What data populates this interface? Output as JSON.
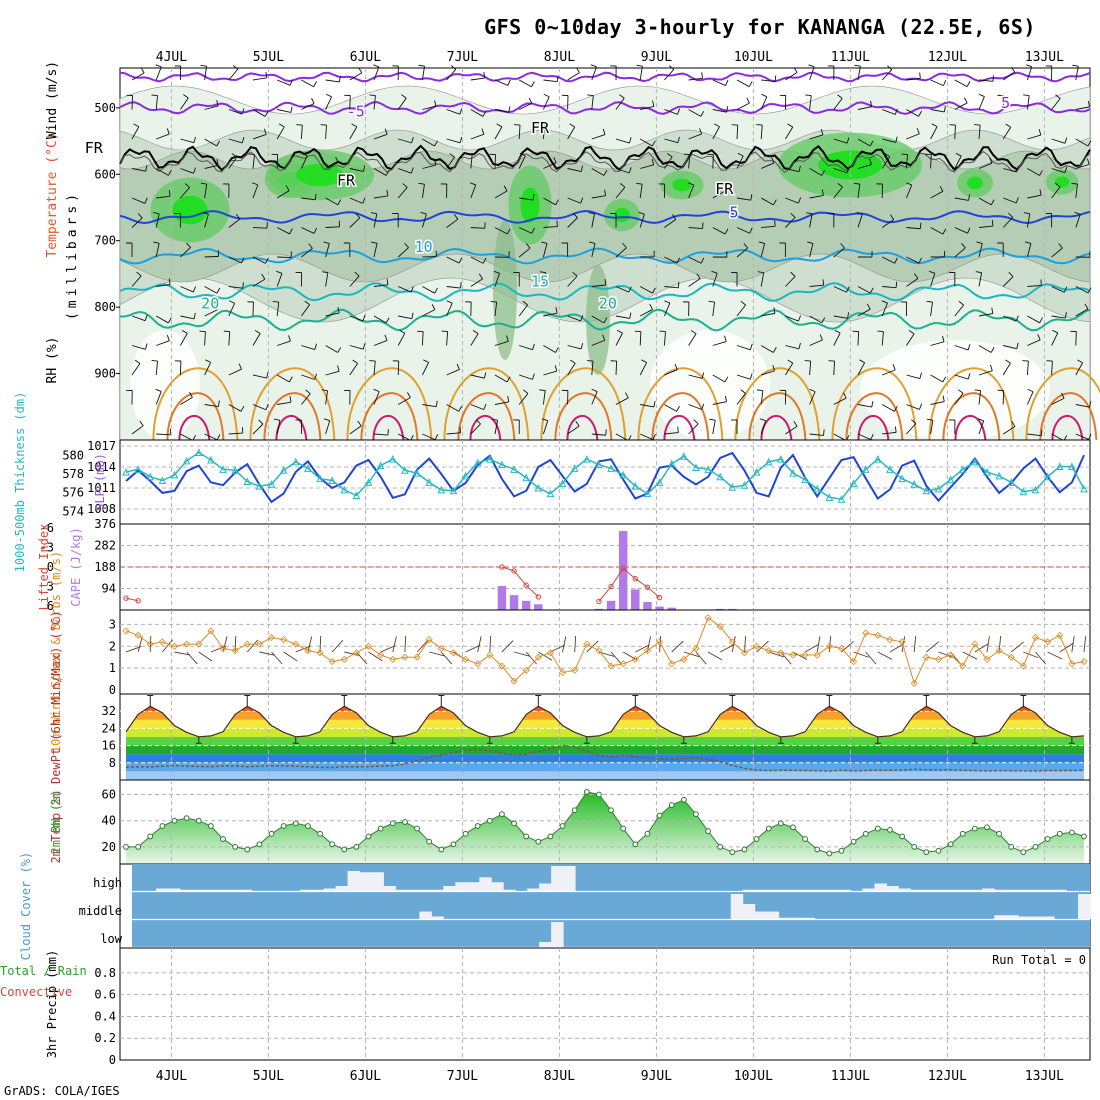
{
  "title": "GFS 0~10day 3-hourly for KANANGA (22.5E, 6S)",
  "credit": "GrADS: COLA/IGES",
  "dates": [
    "4JUL",
    "5JUL",
    "6JUL",
    "7JUL",
    "8JUL",
    "9JUL",
    "10JUL",
    "11JUL",
    "12JUL",
    "13JUL"
  ],
  "colors": {
    "grid": "#b4b4b4",
    "slp": "#1f45d6",
    "thickness": "#27b8c4",
    "cape": "#b07ae8",
    "lifted": "#d9443c",
    "wind10": "#e08a1f",
    "dewpt": "#7a5a3c",
    "rh": "#2aa02a",
    "cloud_bg": "#6aa9d6",
    "cloud_fill": "#f0f0f7"
  },
  "chart_data": [
    {
      "panel": "profile",
      "type": "contour",
      "ylabel_parts": [
        "RH (%)",
        "Temperature (°C)",
        "Wind (m/s)"
      ],
      "ylabel_unit": "(millibars)",
      "yticks": [
        500,
        600,
        700,
        800,
        900
      ],
      "ylim": [
        1000,
        440
      ],
      "contour_labels": [
        {
          "text": "-5",
          "day": 2.9,
          "p": 513,
          "color": "#8a2be2"
        },
        {
          "text": "5",
          "day": 9.6,
          "p": 500,
          "color": "#8a2be2"
        },
        {
          "text": "5",
          "day": 6.8,
          "p": 665,
          "color": "#1f45d6"
        },
        {
          "text": "10",
          "day": 3.6,
          "p": 717,
          "color": "#1aa0e0"
        },
        {
          "text": "15",
          "day": 4.8,
          "p": 769,
          "color": "#1ab7c0"
        },
        {
          "text": "20",
          "day": 1.4,
          "p": 802,
          "color": "#1ab090"
        },
        {
          "text": "20",
          "day": 5.5,
          "p": 802,
          "color": "#1ab090"
        },
        {
          "text": "FR",
          "day": 0.2,
          "p": 568,
          "color": "#000000"
        },
        {
          "text": "FR",
          "day": 2.8,
          "p": 617,
          "color": "#000000"
        },
        {
          "text": "FR",
          "day": 4.8,
          "p": 538,
          "color": "#000000"
        },
        {
          "text": "FR",
          "day": 6.7,
          "p": 630,
          "color": "#000000"
        }
      ]
    },
    {
      "panel": "slp_thickness",
      "type": "line",
      "ylabel_left": "1000-500mb Thickness (dm)",
      "ylabel_right": "SLP (mb)",
      "left_ticks": [
        574,
        576,
        578,
        580
      ],
      "right_ticks": [
        1008,
        1011,
        1014,
        1017
      ],
      "series": [
        {
          "name": "SLP (mb)",
          "values": [
            1012,
            1013.5,
            1012,
            1010.3,
            1010.6,
            1013.4,
            1014.2,
            1011.8,
            1011.4,
            1013.2,
            1014.4,
            1011.5,
            1009,
            1010.2,
            1013.3,
            1014.8,
            1012.4,
            1011,
            1011.8,
            1014.2,
            1015,
            1012.6,
            1009.6,
            1010.1,
            1013.6,
            1015.2,
            1013,
            1010.6,
            1011.7,
            1014.3,
            1015.6,
            1012.3,
            1009.8,
            1010.6,
            1014,
            1015,
            1012.7,
            1010.5,
            1011.6,
            1014.8,
            1015.1,
            1012.2,
            1009.5,
            1010.2,
            1013.9,
            1014.2,
            1012.6,
            1011.5,
            1012.6,
            1015.3,
            1016,
            1013.5,
            1010.3,
            1009.8,
            1013.9,
            1015.7,
            1012.5,
            1009.8,
            1012.4,
            1015,
            1015.4,
            1012.4,
            1009.5,
            1010.8,
            1014.2,
            1014.9,
            1011.3,
            1009.2,
            1011.1,
            1013,
            1015.2,
            1012.6,
            1010.3,
            1011.7,
            1013.8,
            1015.2,
            1012.6,
            1010.4,
            1011.8,
            1015.7
          ]
        },
        {
          "name": "1000-500mb Thickness (dm)",
          "values": [
            578.2,
            578.5,
            577.7,
            577.3,
            577.9,
            579.4,
            580.3,
            579.5,
            578.5,
            578.4,
            577.2,
            576.7,
            576.9,
            578.4,
            579.3,
            578.6,
            577.5,
            577.3,
            576.3,
            575.7,
            577.1,
            578.9,
            579.6,
            578.4,
            578.1,
            577.1,
            576.3,
            576.2,
            577.8,
            579.2,
            579.6,
            579,
            578.5,
            577.6,
            576.5,
            575.9,
            577,
            578.6,
            579.6,
            579,
            578.6,
            577.9,
            576.7,
            575.9,
            577.1,
            579.1,
            579.9,
            578.7,
            578.5,
            577.7,
            576.6,
            576.8,
            578.2,
            579.3,
            579.6,
            578.1,
            577.4,
            576.4,
            575.5,
            575.3,
            577,
            578.5,
            579.6,
            578.5,
            577.5,
            576.9,
            576.2,
            576.4,
            577.4,
            578.5,
            579.3,
            578.2,
            577.8,
            577.1,
            576.1,
            576.3,
            577.7,
            578.8,
            578.8,
            576.4
          ]
        }
      ]
    },
    {
      "panel": "cape_lifted",
      "type": "bar+line",
      "ylabel_left": "Lifted Index",
      "ylabel_right": "CAPE (J/kg)",
      "left_ticks": [
        "-6",
        "-3",
        "0",
        "3",
        "6"
      ],
      "right_ticks": [
        "94",
        "188",
        "282",
        "376"
      ],
      "cape_values": [
        0,
        0,
        0,
        0,
        0,
        0,
        0,
        0,
        0,
        0,
        0,
        0,
        0,
        0,
        0,
        0,
        0,
        0,
        0,
        0,
        0,
        0,
        0,
        0,
        0,
        0,
        0,
        0,
        0,
        0,
        0,
        105,
        65,
        40,
        25,
        0,
        0,
        0,
        0,
        5,
        40,
        345,
        90,
        35,
        15,
        10,
        0,
        0,
        0,
        5,
        5,
        0,
        0,
        0,
        0,
        0,
        0,
        0,
        0,
        0,
        0,
        0,
        0,
        0,
        0,
        0,
        0,
        0,
        0,
        0,
        0,
        0,
        0,
        0,
        0,
        0,
        0,
        0,
        0,
        0
      ],
      "lifted_index": [
        4.8,
        5.2,
        null,
        null,
        null,
        null,
        null,
        null,
        null,
        null,
        null,
        null,
        null,
        null,
        null,
        null,
        null,
        null,
        null,
        null,
        null,
        null,
        null,
        null,
        null,
        null,
        null,
        null,
        null,
        null,
        null,
        0,
        0.6,
        2.8,
        4.6,
        null,
        null,
        null,
        null,
        5.3,
        3,
        0.2,
        1.8,
        3.1,
        4.7,
        null,
        null,
        null,
        null,
        null,
        null,
        null,
        null,
        null,
        null,
        null,
        null,
        null,
        null,
        null,
        null,
        null,
        null,
        null,
        null,
        null,
        null,
        null,
        null,
        null,
        null,
        null,
        null,
        null,
        null,
        null,
        null,
        null,
        null,
        null
      ]
    },
    {
      "panel": "wind10m",
      "type": "line",
      "ylabel": "10m Wind Speed & Barbs (m/s)",
      "yticks": [
        0,
        1,
        2,
        3
      ],
      "values": [
        2.7,
        2.5,
        2.1,
        2.2,
        2,
        2.1,
        2.1,
        2.7,
        1.9,
        1.8,
        2.1,
        2.1,
        2.4,
        2.3,
        2.1,
        1.8,
        1.7,
        1.3,
        1.4,
        1.7,
        2,
        1.6,
        1.4,
        1.5,
        1.5,
        2.3,
        1.9,
        1.7,
        1.4,
        1.2,
        1.6,
        1.1,
        0.4,
        0.9,
        1.5,
        1.7,
        0.8,
        0.9,
        2.1,
        1.8,
        1.1,
        1.2,
        1.4,
        1.8,
        2.2,
        1.2,
        1.4,
        1.9,
        3.3,
        2.9,
        2.2,
        1.7,
        2,
        1.8,
        1.7,
        1.6,
        1.6,
        1.6,
        2,
        1.9,
        1.3,
        2.6,
        2.5,
        2.3,
        2.2,
        0.3,
        1.5,
        1.4,
        1.6,
        1.1,
        2.1,
        1.4,
        1.8,
        1.5,
        1.1,
        2.4,
        2.2,
        2.5,
        1.2,
        1.3
      ]
    },
    {
      "panel": "temp2m",
      "type": "area+line",
      "ylabel": "2m Temp 2m DewPt (6hr Min/Max) (°C)",
      "yticks": [
        8,
        16,
        24,
        32
      ],
      "temp": [
        22.4,
        30.5,
        34.3,
        31.2,
        25.3,
        22.2,
        20.1,
        20.5,
        22.4,
        30.5,
        34.3,
        31.2,
        25.3,
        22.2,
        20.1,
        20.5,
        22.4,
        30.5,
        34.3,
        31.2,
        25.3,
        22.2,
        20.1,
        20.5,
        22.4,
        30.5,
        34.3,
        31.2,
        25.3,
        22.2,
        20.1,
        20.5,
        22.4,
        30.5,
        34.3,
        31.2,
        25.3,
        22.2,
        20.1,
        20.5,
        22.4,
        30.5,
        34.3,
        31.2,
        25.3,
        22.2,
        20.1,
        20.5,
        22.4,
        30.5,
        34.3,
        31.2,
        25.3,
        22.2,
        20.1,
        20.5,
        22.4,
        30.5,
        34.3,
        31.2,
        25.3,
        22.2,
        20.1,
        20.5,
        22.4,
        30.5,
        34.3,
        31.2,
        25.3,
        22.2,
        20.1,
        20.5,
        22.4,
        30.5,
        34.3,
        31.2,
        25.3,
        22.2,
        20.1,
        20.5
      ],
      "dewpt": [
        6,
        6.1,
        6.1,
        6.4,
        6.7,
        6.5,
        6.3,
        6.2,
        6.5,
        6.6,
        6.2,
        6.4,
        6.6,
        6.6,
        6.4,
        6.1,
        5.9,
        5.8,
        6.2,
        6.1,
        6.2,
        6.5,
        6.6,
        7.5,
        8.9,
        10.5,
        11.8,
        12.8,
        13.8,
        14.3,
        13.6,
        12.4,
        11.6,
        12.2,
        13.1,
        14.5,
        16,
        15.3,
        13.3,
        11.5,
        10.6,
        11.5,
        10.9,
        10.3,
        9.8,
        9.6,
        10.1,
        10.3,
        9.6,
        8.6,
        6.8,
        5.4,
        4.6,
        4.4,
        4.6,
        4.5,
        4.4,
        4.3,
        4.2,
        4.5,
        4.3,
        4.4,
        4.6,
        4.5,
        4.6,
        5,
        4.8,
        4.7,
        4.8,
        4.5,
        4.4,
        4.2,
        4.4,
        4.3,
        4.3,
        4.2,
        4.4,
        4.4,
        4.4,
        4.6
      ]
    },
    {
      "panel": "rh2m",
      "type": "area+line",
      "ylabel": "2m RH (%)",
      "yticks": [
        20,
        40,
        60
      ],
      "values": [
        20,
        20,
        28,
        36,
        40,
        42,
        40,
        36,
        26,
        20,
        18,
        22,
        30,
        36,
        38,
        36,
        30,
        22,
        18,
        20,
        28,
        34,
        38,
        39,
        34,
        24,
        18,
        22,
        30,
        36,
        40,
        45,
        38,
        28,
        24,
        28,
        36,
        48,
        62,
        60,
        48,
        34,
        22,
        30,
        44,
        52,
        56,
        45,
        32,
        20,
        16,
        18,
        26,
        34,
        38,
        35,
        26,
        18,
        15,
        17,
        24,
        30,
        34,
        33,
        28,
        20,
        16,
        17,
        22,
        30,
        34,
        35,
        30,
        20,
        16,
        20,
        26,
        30,
        31,
        28
      ]
    },
    {
      "panel": "cloud",
      "type": "bars",
      "ylabel": "Cloud Cover (%)",
      "levels": [
        "high",
        "middle",
        "low"
      ],
      "high": [
        0,
        0,
        10,
        10,
        5,
        5,
        5,
        5,
        5,
        5,
        0,
        0,
        0,
        0,
        5,
        5,
        10,
        20,
        80,
        75,
        75,
        20,
        5,
        5,
        5,
        5,
        20,
        35,
        35,
        55,
        35,
        5,
        0,
        10,
        30,
        100,
        100,
        0,
        0,
        0,
        0,
        0,
        0,
        0,
        0,
        0,
        0,
        0,
        0,
        0,
        0,
        5,
        5,
        5,
        5,
        5,
        5,
        5,
        5,
        5,
        0,
        10,
        30,
        20,
        10,
        5,
        5,
        5,
        5,
        5,
        5,
        10,
        5,
        5,
        5,
        5,
        5,
        5,
        0,
        0
      ],
      "middle": [
        0,
        0,
        0,
        0,
        0,
        0,
        0,
        0,
        0,
        0,
        0,
        0,
        0,
        0,
        0,
        0,
        0,
        0,
        0,
        0,
        0,
        0,
        0,
        0,
        30,
        10,
        0,
        0,
        0,
        0,
        0,
        0,
        0,
        0,
        0,
        0,
        0,
        0,
        0,
        0,
        0,
        0,
        0,
        0,
        0,
        0,
        0,
        0,
        0,
        0,
        100,
        60,
        30,
        30,
        5,
        5,
        5,
        0,
        0,
        0,
        0,
        0,
        0,
        0,
        0,
        0,
        0,
        0,
        0,
        0,
        0,
        0,
        15,
        15,
        10,
        10,
        10,
        0,
        0,
        100
      ],
      "low": [
        0,
        0,
        0,
        0,
        0,
        0,
        0,
        0,
        0,
        0,
        0,
        0,
        0,
        0,
        0,
        0,
        0,
        0,
        0,
        0,
        0,
        0,
        0,
        0,
        0,
        0,
        0,
        0,
        0,
        0,
        0,
        0,
        0,
        0,
        20,
        100,
        0,
        0,
        0,
        0,
        0,
        0,
        0,
        0,
        0,
        0,
        0,
        0,
        0,
        0,
        0,
        0,
        0,
        0,
        0,
        0,
        0,
        0,
        0,
        0,
        0,
        0,
        0,
        0,
        0,
        0,
        0,
        0,
        0,
        0,
        0,
        0,
        0,
        0,
        0,
        0,
        0,
        0,
        0,
        0
      ]
    },
    {
      "panel": "precip",
      "type": "bar",
      "ylabel_left": "Total / Rain",
      "ylabel_left2": "Convective",
      "ylabel": "3hr Precip (mm)",
      "yticks": [
        "0",
        "0.2",
        "0.4",
        "0.6",
        "0.8"
      ],
      "run_total": "Run Total = 0",
      "values": []
    }
  ]
}
